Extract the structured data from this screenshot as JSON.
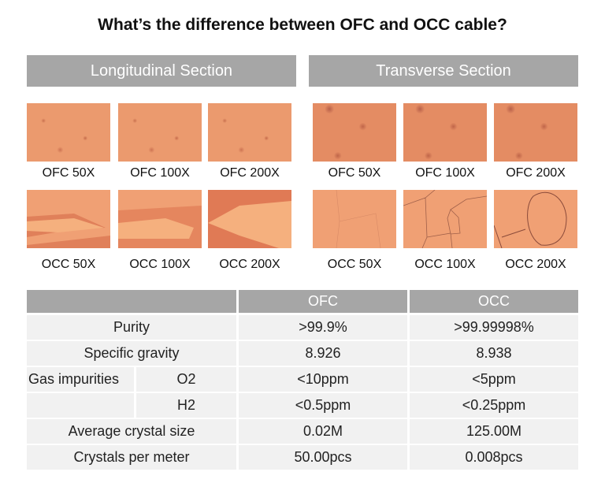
{
  "title": "What’s the difference between OFC and OCC cable?",
  "sections": [
    {
      "label": "Longitudinal Section",
      "row1": [
        "OFC 50X",
        "OFC 100X",
        "OFC 200X"
      ],
      "row2": [
        "OCC 50X",
        "OCC 100X",
        "OCC 200X"
      ]
    },
    {
      "label": "Transverse Section",
      "row1": [
        "OFC 50X",
        "OFC 100X",
        "OFC 200X"
      ],
      "row2": [
        "OCC 50X",
        "OCC 100X",
        "OCC 200X"
      ]
    }
  ],
  "table": {
    "headers": [
      "",
      "OFC",
      "OCC"
    ],
    "rows": [
      {
        "label": "Purity",
        "ofc": ">99.9%",
        "occ": ">99.99998%"
      },
      {
        "label": "Specific gravity",
        "ofc": "8.926",
        "occ": "8.938"
      },
      {
        "label": "Gas impurities",
        "sub": "O2",
        "ofc": "<10ppm",
        "occ": "<5ppm"
      },
      {
        "label": "",
        "sub": "H2",
        "ofc": "<0.5ppm",
        "occ": "<0.25ppm"
      },
      {
        "label": "Average crystal size",
        "ofc": "0.02M",
        "occ": "125.00M"
      },
      {
        "label": "Crystals per meter",
        "ofc": "50.00pcs",
        "occ": "0.008pcs"
      }
    ]
  },
  "colors": {
    "header_gray": "#a6a6a6",
    "cell_bg": "#f1f1f1",
    "copper": "#eb9a6e"
  }
}
